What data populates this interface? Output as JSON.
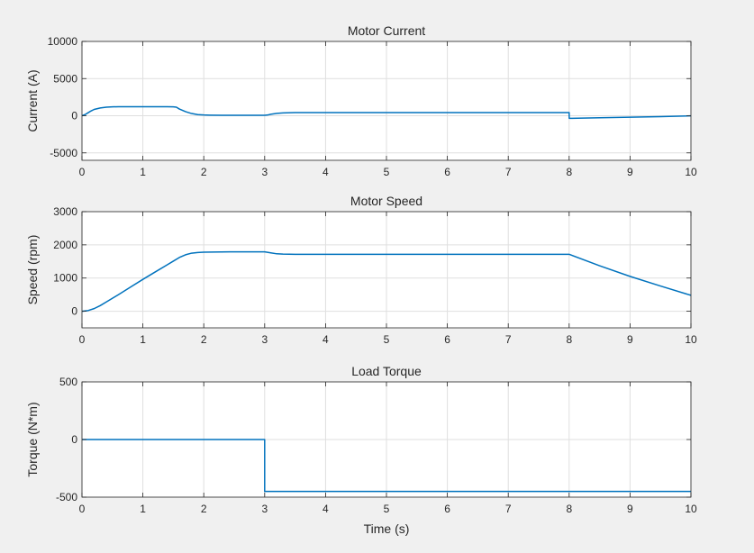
{
  "figure": {
    "background": "#f0f0f0",
    "line_color": "#0072bd"
  },
  "chart_data": [
    {
      "type": "line",
      "title": "Motor Current",
      "xlabel": "",
      "ylabel": "Current (A)",
      "xlim": [
        0,
        10
      ],
      "ylim": [
        -6000,
        10000
      ],
      "xticks": [
        0,
        1,
        2,
        3,
        4,
        5,
        6,
        7,
        8,
        9,
        10
      ],
      "yticks": [
        -5000,
        0,
        5000,
        10000
      ],
      "grid": true,
      "series": [
        {
          "x": [
            0,
            0.05,
            0.1,
            0.15,
            0.2,
            0.3,
            0.4,
            0.5,
            0.6,
            0.8,
            1.0,
            1.2,
            1.4,
            1.5,
            1.55,
            1.6,
            1.7,
            1.8,
            1.9,
            2.0,
            2.1,
            2.3,
            2.6,
            3.0,
            3.05,
            3.1,
            3.2,
            3.3,
            3.5,
            4.0,
            5.0,
            6.0,
            7.0,
            8.0,
            8.001,
            8.5,
            9.0,
            9.5,
            10.0
          ],
          "y": [
            0,
            150,
            400,
            650,
            850,
            1050,
            1150,
            1200,
            1210,
            1210,
            1210,
            1210,
            1210,
            1200,
            1150,
            900,
            550,
            300,
            150,
            100,
            80,
            60,
            60,
            60,
            100,
            200,
            320,
            380,
            420,
            430,
            430,
            430,
            430,
            430,
            -350,
            -280,
            -200,
            -120,
            -20
          ]
        }
      ]
    },
    {
      "type": "line",
      "title": "Motor Speed",
      "xlabel": "",
      "ylabel": "Speed (rpm)",
      "xlim": [
        0,
        10
      ],
      "ylim": [
        -500,
        3000
      ],
      "xticks": [
        0,
        1,
        2,
        3,
        4,
        5,
        6,
        7,
        8,
        9,
        10
      ],
      "yticks": [
        0,
        1000,
        2000,
        3000
      ],
      "grid": true,
      "series": [
        {
          "x": [
            0,
            0.1,
            0.2,
            0.3,
            0.4,
            0.6,
            0.8,
            1.0,
            1.2,
            1.4,
            1.5,
            1.6,
            1.7,
            1.8,
            1.9,
            2.0,
            2.5,
            3.0,
            3.1,
            3.2,
            3.3,
            3.5,
            4.0,
            5.0,
            6.0,
            7.0,
            8.0,
            8.5,
            9.0,
            9.5,
            10.0
          ],
          "y": [
            0,
            20,
            80,
            170,
            280,
            500,
            730,
            960,
            1180,
            1400,
            1510,
            1620,
            1700,
            1750,
            1770,
            1780,
            1790,
            1790,
            1760,
            1730,
            1720,
            1715,
            1715,
            1715,
            1715,
            1715,
            1715,
            1370,
            1050,
            760,
            480
          ]
        }
      ]
    },
    {
      "type": "line",
      "title": "Load Torque",
      "xlabel": "Time (s)",
      "ylabel": "Torque (N*m)",
      "xlim": [
        0,
        10
      ],
      "ylim": [
        -500,
        500
      ],
      "xticks": [
        0,
        1,
        2,
        3,
        4,
        5,
        6,
        7,
        8,
        9,
        10
      ],
      "yticks": [
        -500,
        0,
        500
      ],
      "grid": true,
      "series": [
        {
          "x": [
            0,
            3.0,
            3.0,
            10
          ],
          "y": [
            0,
            0,
            -450,
            -450
          ]
        }
      ]
    }
  ]
}
